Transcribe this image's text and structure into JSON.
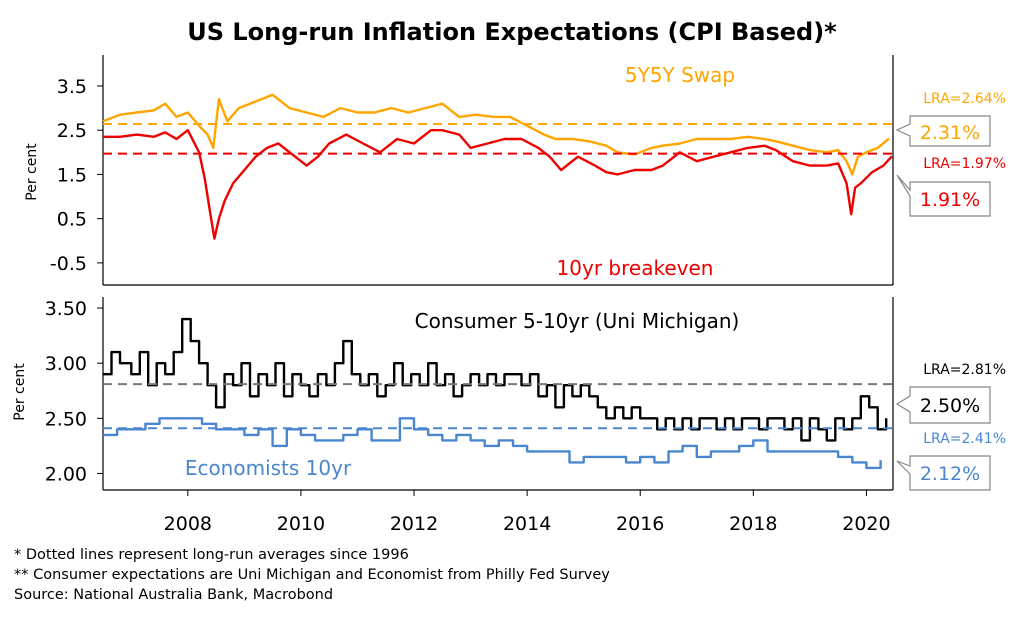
{
  "title": "US Long-run Inflation Expectations (CPI Based)*",
  "colors": {
    "swap": "#ffa500",
    "breakeven": "#ee0000",
    "consumer": "#000000",
    "economists": "#4a86cf",
    "lra_consumer": "#777777"
  },
  "footnotes": [
    "*  Dotted lines represent long-run averages since 1996",
    "** Consumer expectations are Uni Michigan and Economist from Philly Fed Survey",
    "Source: National Australia Bank, Macrobond"
  ],
  "chart_data": [
    {
      "type": "line",
      "ylabel": "Per cent",
      "ylim": [
        -1.0,
        4.2
      ],
      "yticks": [
        "3.5",
        "2.5",
        "1.5",
        "0.5",
        "-0.5"
      ],
      "xlim": [
        2007.0,
        2020.97
      ],
      "xticks": [
        "2008",
        "2010",
        "2012",
        "2014",
        "2016",
        "2018",
        "2020"
      ],
      "series": [
        {
          "name": "5Y5Y Swap",
          "color": "#ffa500",
          "x": [
            2007.0,
            2007.3,
            2007.6,
            2007.9,
            2008.1,
            2008.3,
            2008.5,
            2008.7,
            2008.85,
            2008.95,
            2009.05,
            2009.2,
            2009.4,
            2009.6,
            2009.8,
            2010.0,
            2010.3,
            2010.6,
            2010.9,
            2011.2,
            2011.5,
            2011.8,
            2012.1,
            2012.4,
            2012.7,
            2013.0,
            2013.3,
            2013.6,
            2013.9,
            2014.2,
            2014.5,
            2014.8,
            2015.0,
            2015.3,
            2015.6,
            2015.9,
            2016.1,
            2016.4,
            2016.7,
            2016.9,
            2017.2,
            2017.5,
            2017.8,
            2018.1,
            2018.4,
            2018.7,
            2018.9,
            2019.2,
            2019.5,
            2019.8,
            2020.0,
            2020.15,
            2020.25,
            2020.35,
            2020.5,
            2020.7,
            2020.9
          ],
          "y": [
            2.7,
            2.85,
            2.9,
            2.95,
            3.1,
            2.8,
            2.9,
            2.6,
            2.4,
            2.1,
            3.2,
            2.7,
            3.0,
            3.1,
            3.2,
            3.3,
            3.0,
            2.9,
            2.8,
            3.0,
            2.9,
            2.9,
            3.0,
            2.9,
            3.0,
            3.1,
            2.8,
            2.85,
            2.8,
            2.8,
            2.6,
            2.4,
            2.3,
            2.3,
            2.25,
            2.15,
            2.0,
            1.95,
            2.1,
            2.15,
            2.2,
            2.3,
            2.3,
            2.3,
            2.35,
            2.3,
            2.25,
            2.15,
            2.05,
            2.0,
            2.05,
            1.8,
            1.5,
            1.9,
            2.0,
            2.1,
            2.31
          ]
        },
        {
          "name": "10yr breakeven",
          "color": "#ee0000",
          "x": [
            2007.0,
            2007.3,
            2007.6,
            2007.9,
            2008.1,
            2008.3,
            2008.5,
            2008.7,
            2008.8,
            2008.9,
            2008.97,
            2009.05,
            2009.15,
            2009.3,
            2009.5,
            2009.7,
            2009.9,
            2010.1,
            2010.3,
            2010.6,
            2010.8,
            2011.0,
            2011.3,
            2011.6,
            2011.9,
            2012.2,
            2012.5,
            2012.8,
            2013.0,
            2013.3,
            2013.5,
            2013.8,
            2014.1,
            2014.4,
            2014.7,
            2014.9,
            2015.1,
            2015.4,
            2015.7,
            2015.9,
            2016.1,
            2016.4,
            2016.7,
            2016.9,
            2017.2,
            2017.5,
            2017.8,
            2018.1,
            2018.4,
            2018.7,
            2018.9,
            2019.2,
            2019.5,
            2019.8,
            2020.0,
            2020.15,
            2020.23,
            2020.3,
            2020.4,
            2020.6,
            2020.8,
            2020.95
          ],
          "y": [
            2.35,
            2.35,
            2.4,
            2.35,
            2.45,
            2.3,
            2.5,
            2.0,
            1.4,
            0.6,
            0.05,
            0.5,
            0.9,
            1.3,
            1.6,
            1.9,
            2.1,
            2.2,
            2.0,
            1.7,
            1.9,
            2.2,
            2.4,
            2.2,
            2.0,
            2.3,
            2.2,
            2.5,
            2.5,
            2.4,
            2.1,
            2.2,
            2.3,
            2.3,
            2.1,
            1.9,
            1.6,
            1.9,
            1.7,
            1.55,
            1.5,
            1.6,
            1.6,
            1.7,
            2.0,
            1.8,
            1.9,
            2.0,
            2.1,
            2.15,
            2.05,
            1.8,
            1.7,
            1.7,
            1.75,
            1.3,
            0.6,
            1.2,
            1.3,
            1.55,
            1.7,
            1.91
          ]
        },
        {
          "name": "LRA swap",
          "color": "#ffa500",
          "dashed": true,
          "x": [
            2007.0,
            2020.97
          ],
          "y": [
            2.64,
            2.64
          ]
        },
        {
          "name": "LRA breakeven",
          "color": "#ee0000",
          "dashed": true,
          "x": [
            2007.0,
            2020.97
          ],
          "y": [
            1.97,
            1.97
          ]
        }
      ],
      "annotations": {
        "swap_label": "5Y5Y Swap",
        "breakeven_label": "10yr breakeven",
        "lra_swap": "LRA=2.64%",
        "lra_breakeven": "LRA=1.97%",
        "latest_swap": "2.31%",
        "latest_breakeven": "1.91%"
      }
    },
    {
      "type": "line",
      "ylabel": "Per cent",
      "ylim": [
        1.85,
        3.6
      ],
      "yticks": [
        "3.50",
        "3.00",
        "2.50",
        "2.00"
      ],
      "xlim": [
        2007.0,
        2020.97
      ],
      "xticks": [
        "2008",
        "2010",
        "2012",
        "2014",
        "2016",
        "2018",
        "2020"
      ],
      "series": [
        {
          "name": "Consumer 5-10yr (Uni Michigan)",
          "color": "#000000",
          "step": true,
          "x": [
            2007.0,
            2007.15,
            2007.3,
            2007.5,
            2007.65,
            2007.8,
            2007.95,
            2008.1,
            2008.25,
            2008.4,
            2008.55,
            2008.7,
            2008.85,
            2009.0,
            2009.15,
            2009.3,
            2009.45,
            2009.6,
            2009.75,
            2009.9,
            2010.05,
            2010.2,
            2010.35,
            2010.5,
            2010.65,
            2010.8,
            2010.95,
            2011.1,
            2011.25,
            2011.4,
            2011.55,
            2011.7,
            2011.85,
            2012.0,
            2012.15,
            2012.3,
            2012.45,
            2012.6,
            2012.75,
            2012.9,
            2013.05,
            2013.2,
            2013.35,
            2013.5,
            2013.65,
            2013.8,
            2013.95,
            2014.1,
            2014.25,
            2014.4,
            2014.55,
            2014.7,
            2014.85,
            2015.0,
            2015.15,
            2015.3,
            2015.45,
            2015.6,
            2015.75,
            2015.9,
            2016.05,
            2016.2,
            2016.35,
            2016.5,
            2016.65,
            2016.8,
            2016.95,
            2017.1,
            2017.25,
            2017.4,
            2017.55,
            2017.7,
            2017.85,
            2018.0,
            2018.15,
            2018.3,
            2018.45,
            2018.6,
            2018.75,
            2018.9,
            2019.05,
            2019.2,
            2019.35,
            2019.5,
            2019.65,
            2019.8,
            2019.95,
            2020.1,
            2020.25,
            2020.4,
            2020.55,
            2020.7,
            2020.85
          ],
          "y": [
            2.9,
            3.1,
            3.0,
            2.9,
            3.1,
            2.8,
            3.0,
            2.9,
            3.1,
            3.4,
            3.2,
            3.0,
            2.8,
            2.6,
            2.9,
            2.8,
            3.0,
            2.7,
            2.9,
            2.8,
            3.0,
            2.7,
            2.9,
            2.8,
            2.7,
            2.9,
            2.8,
            3.0,
            3.2,
            2.9,
            2.8,
            2.9,
            2.7,
            2.8,
            3.0,
            2.8,
            2.9,
            2.8,
            3.0,
            2.8,
            2.9,
            2.7,
            2.8,
            2.9,
            2.8,
            2.9,
            2.8,
            2.9,
            2.9,
            2.8,
            2.9,
            2.7,
            2.8,
            2.6,
            2.8,
            2.7,
            2.8,
            2.7,
            2.6,
            2.5,
            2.6,
            2.5,
            2.6,
            2.5,
            2.5,
            2.4,
            2.5,
            2.4,
            2.5,
            2.4,
            2.5,
            2.5,
            2.4,
            2.5,
            2.4,
            2.5,
            2.5,
            2.4,
            2.5,
            2.5,
            2.4,
            2.5,
            2.3,
            2.5,
            2.4,
            2.3,
            2.5,
            2.4,
            2.5,
            2.7,
            2.6,
            2.4,
            2.5
          ]
        },
        {
          "name": "Economists 10yr",
          "color": "#4a86cf",
          "step": true,
          "x": [
            2007.0,
            2007.25,
            2007.5,
            2007.75,
            2008.0,
            2008.25,
            2008.5,
            2008.75,
            2009.0,
            2009.25,
            2009.5,
            2009.75,
            2010.0,
            2010.25,
            2010.5,
            2010.75,
            2011.0,
            2011.25,
            2011.5,
            2011.75,
            2012.0,
            2012.25,
            2012.5,
            2012.75,
            2013.0,
            2013.25,
            2013.5,
            2013.75,
            2014.0,
            2014.25,
            2014.5,
            2014.75,
            2015.0,
            2015.25,
            2015.5,
            2015.75,
            2016.0,
            2016.25,
            2016.5,
            2016.75,
            2017.0,
            2017.25,
            2017.5,
            2017.75,
            2018.0,
            2018.25,
            2018.5,
            2018.75,
            2019.0,
            2019.25,
            2019.5,
            2019.75,
            2020.0,
            2020.25,
            2020.5,
            2020.75
          ],
          "y": [
            2.35,
            2.4,
            2.4,
            2.45,
            2.5,
            2.5,
            2.5,
            2.45,
            2.4,
            2.4,
            2.35,
            2.4,
            2.25,
            2.4,
            2.35,
            2.3,
            2.3,
            2.35,
            2.4,
            2.3,
            2.3,
            2.5,
            2.4,
            2.35,
            2.3,
            2.35,
            2.3,
            2.25,
            2.3,
            2.25,
            2.2,
            2.2,
            2.2,
            2.1,
            2.15,
            2.15,
            2.15,
            2.1,
            2.15,
            2.1,
            2.2,
            2.25,
            2.15,
            2.2,
            2.2,
            2.25,
            2.3,
            2.2,
            2.2,
            2.2,
            2.2,
            2.2,
            2.15,
            2.1,
            2.05,
            2.12
          ]
        },
        {
          "name": "LRA consumer",
          "color": "#777777",
          "dashed": true,
          "x": [
            2007.0,
            2020.97
          ],
          "y": [
            2.81,
            2.81
          ]
        },
        {
          "name": "LRA economists",
          "color": "#4a86cf",
          "dashed": true,
          "x": [
            2007.0,
            2020.97
          ],
          "y": [
            2.41,
            2.41
          ]
        }
      ],
      "annotations": {
        "consumer_label": "Consumer 5-10yr (Uni Michigan)",
        "economists_label": "Economists 10yr",
        "lra_consumer": "LRA=2.81%",
        "lra_economists": "LRA=2.41%",
        "latest_consumer": "2.50%",
        "latest_economists": "2.12%"
      }
    }
  ]
}
